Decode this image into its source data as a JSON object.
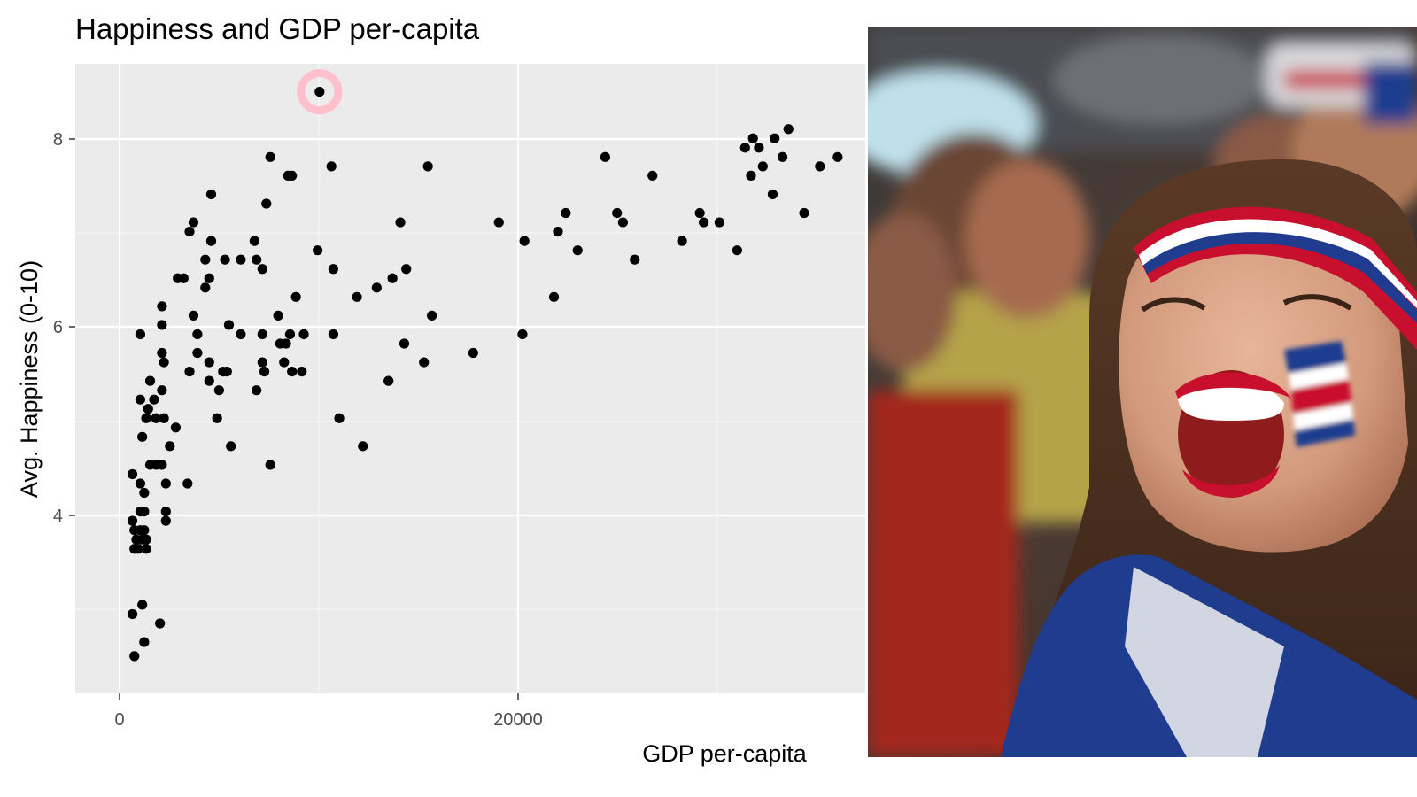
{
  "chart_data": {
    "type": "scatter",
    "title": "Happiness and GDP per-capita",
    "xlabel": "GDP per-capita",
    "ylabel": "Avg. Happiness (0-10)",
    "xlim": [
      -2300,
      37800
    ],
    "ylim": [
      2.05,
      8.8
    ],
    "x_ticks": [
      0,
      20000
    ],
    "x_tick_labels": [
      "0",
      "20000"
    ],
    "y_ticks": [
      4,
      6,
      8
    ],
    "y_tick_labels": [
      "4",
      "6",
      "8"
    ],
    "grid": true,
    "highlight": {
      "x": 10100,
      "y": 8.5,
      "color": "#ffc0cb"
    },
    "points": [
      [
        10100,
        8.5
      ],
      [
        700,
        2.45
      ],
      [
        600,
        2.9
      ],
      [
        1200,
        2.6
      ],
      [
        2000,
        2.8
      ],
      [
        1100,
        3.0
      ],
      [
        700,
        3.6
      ],
      [
        900,
        3.6
      ],
      [
        1300,
        3.6
      ],
      [
        800,
        3.7
      ],
      [
        1100,
        3.7
      ],
      [
        1300,
        3.7
      ],
      [
        700,
        3.8
      ],
      [
        1000,
        3.8
      ],
      [
        1200,
        3.8
      ],
      [
        600,
        3.9
      ],
      [
        1000,
        4.0
      ],
      [
        1200,
        4.0
      ],
      [
        2300,
        3.9
      ],
      [
        2300,
        4.0
      ],
      [
        1200,
        4.2
      ],
      [
        1000,
        4.3
      ],
      [
        600,
        4.4
      ],
      [
        2300,
        4.3
      ],
      [
        3400,
        4.3
      ],
      [
        1500,
        4.5
      ],
      [
        1800,
        4.5
      ],
      [
        2100,
        4.5
      ],
      [
        1100,
        4.8
      ],
      [
        2500,
        4.7
      ],
      [
        1300,
        5.0
      ],
      [
        1800,
        5.0
      ],
      [
        2200,
        5.0
      ],
      [
        2800,
        4.9
      ],
      [
        1400,
        5.1
      ],
      [
        1000,
        5.2
      ],
      [
        1700,
        5.2
      ],
      [
        2100,
        5.3
      ],
      [
        1500,
        5.4
      ],
      [
        2200,
        5.6
      ],
      [
        2100,
        5.7
      ],
      [
        1000,
        5.9
      ],
      [
        2100,
        6.0
      ],
      [
        2100,
        6.2
      ],
      [
        3500,
        5.5
      ],
      [
        3900,
        5.7
      ],
      [
        3900,
        5.9
      ],
      [
        3700,
        6.1
      ],
      [
        4500,
        5.6
      ],
      [
        4500,
        5.4
      ],
      [
        5000,
        5.3
      ],
      [
        5200,
        5.5
      ],
      [
        5400,
        5.5
      ],
      [
        4900,
        5.0
      ],
      [
        5600,
        4.7
      ],
      [
        5500,
        6.0
      ],
      [
        6100,
        5.9
      ],
      [
        4300,
        6.4
      ],
      [
        4500,
        6.5
      ],
      [
        4300,
        6.7
      ],
      [
        5300,
        6.7
      ],
      [
        6100,
        6.7
      ],
      [
        2900,
        6.5
      ],
      [
        3200,
        6.5
      ],
      [
        4600,
        6.9
      ],
      [
        3500,
        7.0
      ],
      [
        3700,
        7.1
      ],
      [
        4600,
        7.4
      ],
      [
        6800,
        6.9
      ],
      [
        6900,
        6.7
      ],
      [
        7200,
        6.6
      ],
      [
        7400,
        7.3
      ],
      [
        7200,
        5.9
      ],
      [
        7300,
        5.5
      ],
      [
        7200,
        5.6
      ],
      [
        6900,
        5.3
      ],
      [
        7600,
        4.5
      ],
      [
        7600,
        7.8
      ],
      [
        8000,
        6.1
      ],
      [
        8100,
        5.8
      ],
      [
        8300,
        5.6
      ],
      [
        8600,
        5.9
      ],
      [
        8400,
        5.8
      ],
      [
        8700,
        5.5
      ],
      [
        9200,
        5.5
      ],
      [
        9300,
        5.9
      ],
      [
        8900,
        6.3
      ],
      [
        8500,
        7.6
      ],
      [
        8700,
        7.6
      ],
      [
        10000,
        6.8
      ],
      [
        10700,
        7.7
      ],
      [
        10800,
        6.6
      ],
      [
        10800,
        5.9
      ],
      [
        11100,
        5.0
      ],
      [
        12000,
        6.3
      ],
      [
        12300,
        4.7
      ],
      [
        13000,
        6.4
      ],
      [
        13600,
        5.4
      ],
      [
        13800,
        6.5
      ],
      [
        14200,
        7.1
      ],
      [
        14400,
        5.8
      ],
      [
        14500,
        6.6
      ],
      [
        15400,
        5.6
      ],
      [
        15600,
        7.7
      ],
      [
        15800,
        6.1
      ],
      [
        17900,
        5.7
      ],
      [
        19200,
        7.1
      ],
      [
        20400,
        5.9
      ],
      [
        20500,
        6.9
      ],
      [
        22000,
        6.3
      ],
      [
        22200,
        7.0
      ],
      [
        22600,
        7.2
      ],
      [
        23200,
        6.8
      ],
      [
        24600,
        7.8
      ],
      [
        25200,
        7.2
      ],
      [
        25500,
        7.1
      ],
      [
        26100,
        6.7
      ],
      [
        27000,
        7.6
      ],
      [
        28500,
        6.9
      ],
      [
        29400,
        7.2
      ],
      [
        29600,
        7.1
      ],
      [
        30400,
        7.1
      ],
      [
        31300,
        6.8
      ],
      [
        31700,
        7.9
      ],
      [
        32000,
        7.6
      ],
      [
        32100,
        8.0
      ],
      [
        32400,
        7.9
      ],
      [
        32600,
        7.7
      ],
      [
        33100,
        7.4
      ],
      [
        33200,
        8.0
      ],
      [
        33600,
        7.8
      ],
      [
        33900,
        8.1
      ],
      [
        34700,
        7.2
      ],
      [
        35500,
        7.7
      ],
      [
        36400,
        7.8
      ]
    ]
  },
  "photo": {
    "bg": "#2a2320",
    "flag_colors": [
      "#1f3c8f",
      "#ffffff",
      "#c8102e"
    ]
  }
}
